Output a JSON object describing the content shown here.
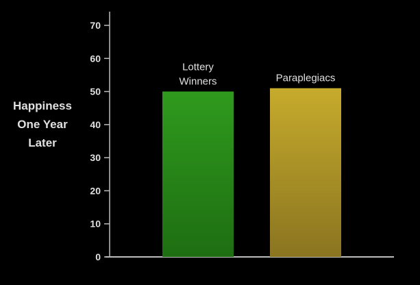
{
  "chart_data": {
    "type": "bar",
    "categories": [
      "Lottery\nWinners",
      "Paraplegiacs"
    ],
    "values": [
      50,
      51
    ],
    "ylabel": "Happiness\nOne Year\nLater",
    "xlabel": "",
    "ylim": [
      0,
      70
    ],
    "yticks": [
      0,
      10,
      20,
      30,
      40,
      50,
      60,
      70
    ],
    "grid": false,
    "legend": "none",
    "bar_colors": [
      "#2f8f1d",
      "#b9a22a"
    ]
  },
  "colors": {
    "background": "#000000",
    "axis": "#bdbdbd",
    "text": "#e0e0e0"
  }
}
